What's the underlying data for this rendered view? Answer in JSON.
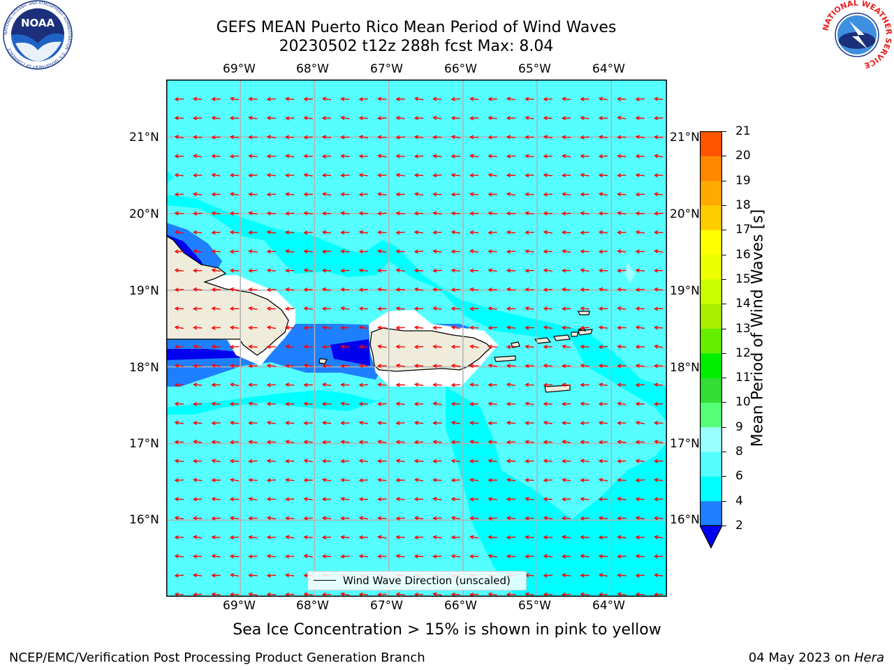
{
  "title": {
    "line1": "GEFS MEAN Puerto Rico Mean Period of Wind Waves",
    "line2": "20230502 t12z 288h fcst   Max: 8.04"
  },
  "map": {
    "lon_ticks": [
      "69°W",
      "68°W",
      "67°W",
      "66°W",
      "65°W",
      "64°W"
    ],
    "lat_ticks": [
      "21°N",
      "20°N",
      "19°N",
      "18°N",
      "17°N",
      "16°N"
    ],
    "lon_range": [
      -70.0,
      -63.25
    ],
    "lat_range": [
      15.0,
      21.75
    ],
    "background_color": "#55ffff",
    "lower_class_color": "#00ffff",
    "arrow_color": "#ff0000",
    "land_color": "#efecdc",
    "legend_label": "Wind Wave Direction (unscaled)"
  },
  "colorbar": {
    "label": "Mean Period of Wind Waves [s]",
    "ticks": [
      "2",
      "4",
      "6",
      "8",
      "9",
      "10",
      "11",
      "12",
      "13",
      "14",
      "15",
      "16",
      "17",
      "18",
      "19",
      "20",
      "21"
    ],
    "colors": [
      "#0000ee",
      "#1e80ff",
      "#00ffff",
      "#55ffff",
      "#99ffff",
      "#55ff77",
      "#33dd33",
      "#00ee00",
      "#66ee00",
      "#aaee00",
      "#ccff00",
      "#eeff00",
      "#ffff00",
      "#ffcc00",
      "#ffaa00",
      "#ff8800",
      "#ff5500",
      "#ff2200",
      "#ff0000"
    ]
  },
  "note": "Sea Ice Concentration > 15% is shown in pink to yellow",
  "footer": {
    "left": "NCEP/EMC/Verification Post Processing Product Generation Branch",
    "date": "04 May 2023 on ",
    "machine": "Hera"
  },
  "logos": {
    "noaa": "NOAA",
    "noaa_ring": "NATIONAL OCEANIC AND ATMOSPHERIC ADMINISTRATION · U.S. DEPARTMENT OF COMMERCE",
    "nws_ring": "NATIONAL WEATHER SERVICE"
  }
}
